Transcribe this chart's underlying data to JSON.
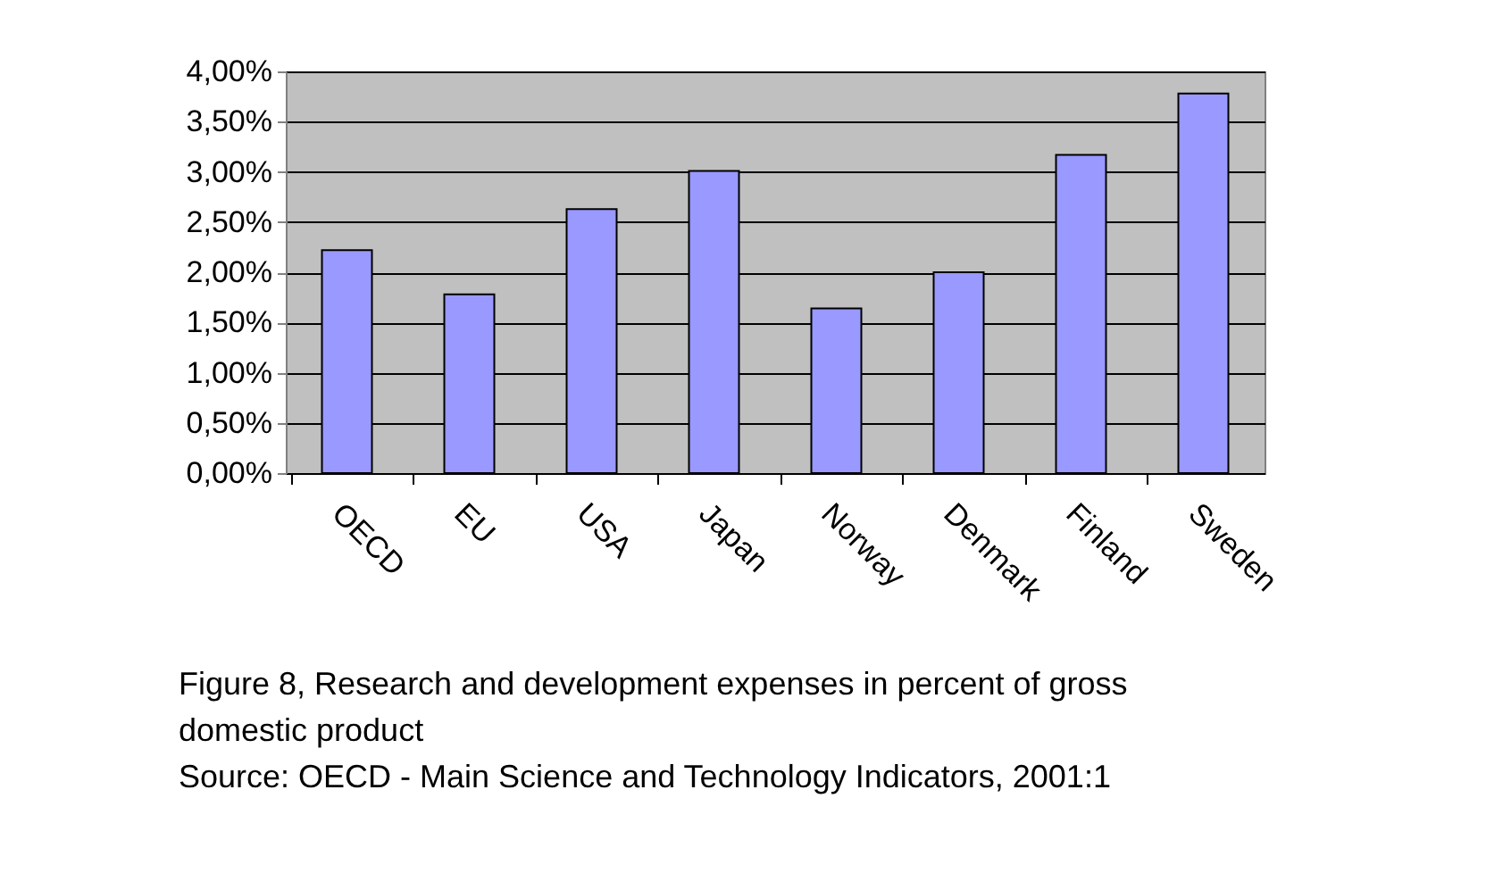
{
  "chart_data": {
    "type": "bar",
    "categories": [
      "OECD",
      "EU",
      "USA",
      "Japan",
      "Norway",
      "Denmark",
      "Finland",
      "Sweden"
    ],
    "values": [
      2.22,
      1.78,
      2.63,
      3.01,
      1.64,
      2.0,
      3.17,
      3.78
    ],
    "color": "#9999ff",
    "ylim": [
      0,
      4
    ],
    "yticks": [
      {
        "value": 0,
        "label": "0,00%"
      },
      {
        "value": 0.5,
        "label": "0,50%"
      },
      {
        "value": 1,
        "label": "1,00%"
      },
      {
        "value": 1.5,
        "label": "1,50%"
      },
      {
        "value": 2,
        "label": "2,00%"
      },
      {
        "value": 2.5,
        "label": "2,50%"
      },
      {
        "value": 3,
        "label": "3,00%"
      },
      {
        "value": 3.5,
        "label": "3,50%"
      },
      {
        "value": 4,
        "label": "4,00%"
      }
    ],
    "grid": "y",
    "annotations": [
      "Figure 8, Research and development expenses in percent of gross domestic product",
      "Source: OECD - Main Science and Technology Indicators, 2001:1"
    ]
  }
}
